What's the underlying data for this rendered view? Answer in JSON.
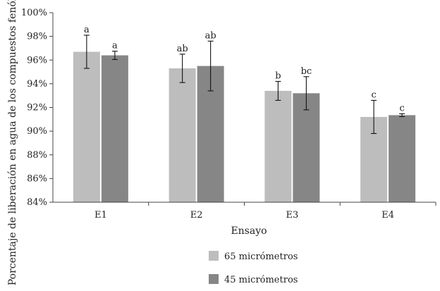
{
  "chart_data": {
    "type": "bar",
    "categories": [
      "E1",
      "E2",
      "E3",
      "E4"
    ],
    "ylabel": "Porcentaje de liberación en agua de los compuestos fenólicos",
    "xlabel": "Ensayo",
    "ylim": [
      84,
      100
    ],
    "yticks": [
      "84%",
      "86%",
      "88%",
      "90%",
      "92%",
      "94%",
      "96%",
      "98%",
      "100%"
    ],
    "ytick_values": [
      84,
      86,
      88,
      90,
      92,
      94,
      96,
      98,
      100
    ],
    "grid": false,
    "legend_position": "bottom",
    "series": [
      {
        "name": "65 micrómetros",
        "color": "#bdbdbd",
        "values": [
          96.7,
          95.3,
          93.4,
          91.2
        ],
        "error": [
          1.4,
          1.2,
          0.8,
          1.4
        ],
        "labels": [
          "a",
          "ab",
          "b",
          "c"
        ]
      },
      {
        "name": "45 micrómetros",
        "color": "#868686",
        "values": [
          96.4,
          95.5,
          93.2,
          91.35
        ],
        "error": [
          0.35,
          2.1,
          1.4,
          0.12
        ],
        "labels": [
          "a",
          "ab",
          "bc",
          "c"
        ]
      }
    ]
  }
}
